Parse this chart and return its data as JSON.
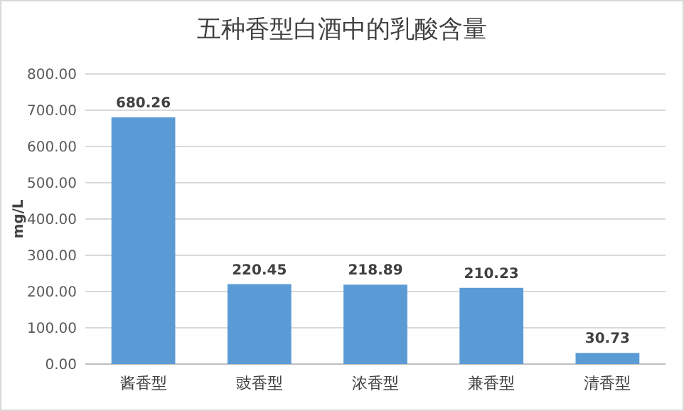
{
  "chart_data": {
    "type": "bar",
    "title": "五种香型白酒中的乳酸含量",
    "ylabel": "mg/L",
    "categories": [
      "酱香型",
      "豉香型",
      "浓香型",
      "兼香型",
      "清香型"
    ],
    "values": [
      680.26,
      220.45,
      218.89,
      210.23,
      30.73
    ],
    "color": "#5b9bd5",
    "ylim": [
      0,
      800
    ],
    "yticks": [
      {
        "value": 0,
        "label": "0.00"
      },
      {
        "value": 100,
        "label": "100.00"
      },
      {
        "value": 200,
        "label": "200.00"
      },
      {
        "value": 300,
        "label": "300.00"
      },
      {
        "value": 400,
        "label": "400.00"
      },
      {
        "value": 500,
        "label": "500.00"
      },
      {
        "value": 600,
        "label": "600.00"
      },
      {
        "value": 700,
        "label": "700.00"
      },
      {
        "value": 800,
        "label": "800.00"
      }
    ],
    "grid": "y",
    "data_labels": true
  }
}
